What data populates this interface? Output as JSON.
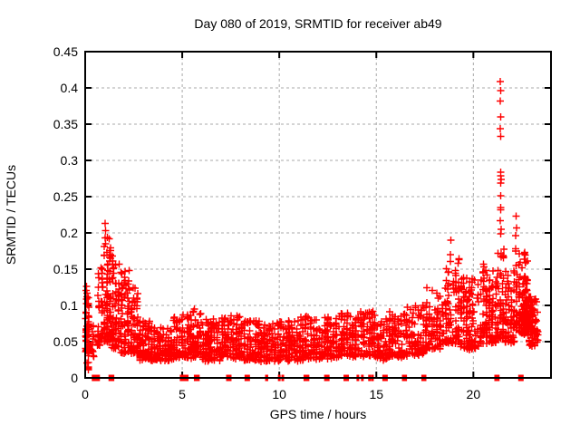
{
  "chart_data": {
    "type": "scatter",
    "title": "Day 080 of 2019, SRMTID for receiver ab49",
    "xlabel": "GPS time / hours",
    "ylabel": "SRMTID / TECUs",
    "xlim": [
      0,
      24
    ],
    "ylim": [
      0,
      0.45
    ],
    "xticks": [
      0,
      5,
      10,
      15,
      20
    ],
    "xtick_labels": [
      "0",
      "5",
      "10",
      "15",
      "20"
    ],
    "yticks": [
      0,
      0.05,
      0.1,
      0.15,
      0.2,
      0.25,
      0.3,
      0.35,
      0.4,
      0.45
    ],
    "ytick_labels": [
      "0",
      "0.05",
      "0.1",
      "0.15",
      "0.2",
      "0.25",
      "0.3",
      "0.35",
      "0.4",
      "0.45"
    ],
    "grid": true,
    "legend": "none",
    "colors": {
      "points": "#ff0000",
      "grid": "#a8a8a8",
      "frame": "#000000",
      "background": "#ffffff",
      "text": "#000000"
    },
    "seed": 20190080,
    "series": [
      {
        "name": "SRMTID values",
        "marker": "plus",
        "color": "#ff0000",
        "band_segments": [
          [
            0.0,
            0.22,
            0.035,
            0.13,
            55
          ],
          [
            0.05,
            0.22,
            0.01,
            0.04,
            8
          ],
          [
            0.22,
            0.6,
            0.03,
            0.085,
            14
          ],
          [
            0.6,
            0.95,
            0.045,
            0.155,
            40
          ],
          [
            0.95,
            1.35,
            0.05,
            0.195,
            85
          ],
          [
            1.35,
            1.8,
            0.04,
            0.17,
            65
          ],
          [
            1.8,
            2.3,
            0.035,
            0.15,
            70
          ],
          [
            2.3,
            2.75,
            0.035,
            0.125,
            60
          ],
          [
            2.75,
            3.5,
            0.025,
            0.08,
            95
          ],
          [
            3.5,
            4.5,
            0.025,
            0.07,
            115
          ],
          [
            4.5,
            5.5,
            0.028,
            0.088,
            105
          ],
          [
            5.5,
            6.0,
            0.03,
            0.092,
            55
          ],
          [
            6.0,
            7.0,
            0.025,
            0.08,
            105
          ],
          [
            7.0,
            8.0,
            0.028,
            0.085,
            105
          ],
          [
            8.0,
            9.0,
            0.025,
            0.08,
            100
          ],
          [
            9.0,
            10.0,
            0.022,
            0.075,
            95
          ],
          [
            10.0,
            11.0,
            0.025,
            0.08,
            100
          ],
          [
            11.0,
            12.0,
            0.025,
            0.085,
            100
          ],
          [
            12.0,
            13.0,
            0.028,
            0.085,
            100
          ],
          [
            13.0,
            14.0,
            0.03,
            0.09,
            100
          ],
          [
            14.0,
            15.0,
            0.03,
            0.092,
            95
          ],
          [
            15.0,
            15.6,
            0.025,
            0.08,
            55
          ],
          [
            15.6,
            16.5,
            0.03,
            0.09,
            85
          ],
          [
            16.5,
            17.5,
            0.032,
            0.1,
            90
          ],
          [
            17.5,
            18.5,
            0.04,
            0.125,
            90
          ],
          [
            18.5,
            19.3,
            0.048,
            0.17,
            85
          ],
          [
            19.3,
            20.3,
            0.04,
            0.14,
            110
          ],
          [
            20.3,
            21.2,
            0.048,
            0.16,
            110
          ],
          [
            21.2,
            21.6,
            0.055,
            0.185,
            55
          ],
          [
            21.6,
            22.15,
            0.05,
            0.15,
            70
          ],
          [
            22.15,
            22.45,
            0.06,
            0.19,
            45
          ],
          [
            22.45,
            22.85,
            0.06,
            0.175,
            60
          ],
          [
            22.55,
            23.05,
            0.068,
            0.118,
            80
          ],
          [
            22.85,
            23.35,
            0.045,
            0.115,
            55
          ]
        ],
        "peak_points": [
          [
            1.02,
            0.213
          ],
          [
            1.04,
            0.203
          ],
          [
            1.03,
            0.193
          ],
          [
            5.62,
            0.095
          ],
          [
            18.85,
            0.19
          ],
          [
            21.38,
            0.409
          ],
          [
            21.4,
            0.396
          ],
          [
            21.39,
            0.382
          ],
          [
            21.4,
            0.36
          ],
          [
            21.39,
            0.344
          ],
          [
            21.4,
            0.333
          ],
          [
            21.42,
            0.284
          ],
          [
            21.4,
            0.279
          ],
          [
            21.43,
            0.274
          ],
          [
            21.41,
            0.269
          ],
          [
            21.42,
            0.251
          ],
          [
            21.4,
            0.235
          ],
          [
            21.42,
            0.232
          ],
          [
            21.38,
            0.217
          ],
          [
            21.44,
            0.205
          ],
          [
            21.4,
            0.199
          ],
          [
            22.2,
            0.223
          ],
          [
            22.22,
            0.207
          ],
          [
            22.18,
            0.196
          ]
        ]
      },
      {
        "name": "flagged intervals at zero",
        "marker": "filled-square",
        "color": "#ff0000",
        "intervals_x_width_hours": [
          [
            0.55,
            0.42
          ],
          [
            1.35,
            0.3
          ],
          [
            5.1,
            0.45
          ],
          [
            5.75,
            0.3
          ],
          [
            7.4,
            0.28
          ],
          [
            8.35,
            0.28
          ],
          [
            9.35,
            0.16
          ],
          [
            10.0,
            0.07
          ],
          [
            10.18,
            0.07
          ],
          [
            11.4,
            0.3
          ],
          [
            12.45,
            0.28
          ],
          [
            13.45,
            0.28
          ],
          [
            14.05,
            0.07
          ],
          [
            14.28,
            0.07
          ],
          [
            14.65,
            0.07
          ],
          [
            14.8,
            0.07
          ],
          [
            15.45,
            0.28
          ],
          [
            16.45,
            0.26
          ],
          [
            17.45,
            0.26
          ],
          [
            21.15,
            0.06
          ],
          [
            21.28,
            0.06
          ],
          [
            22.45,
            0.28
          ]
        ]
      }
    ]
  }
}
